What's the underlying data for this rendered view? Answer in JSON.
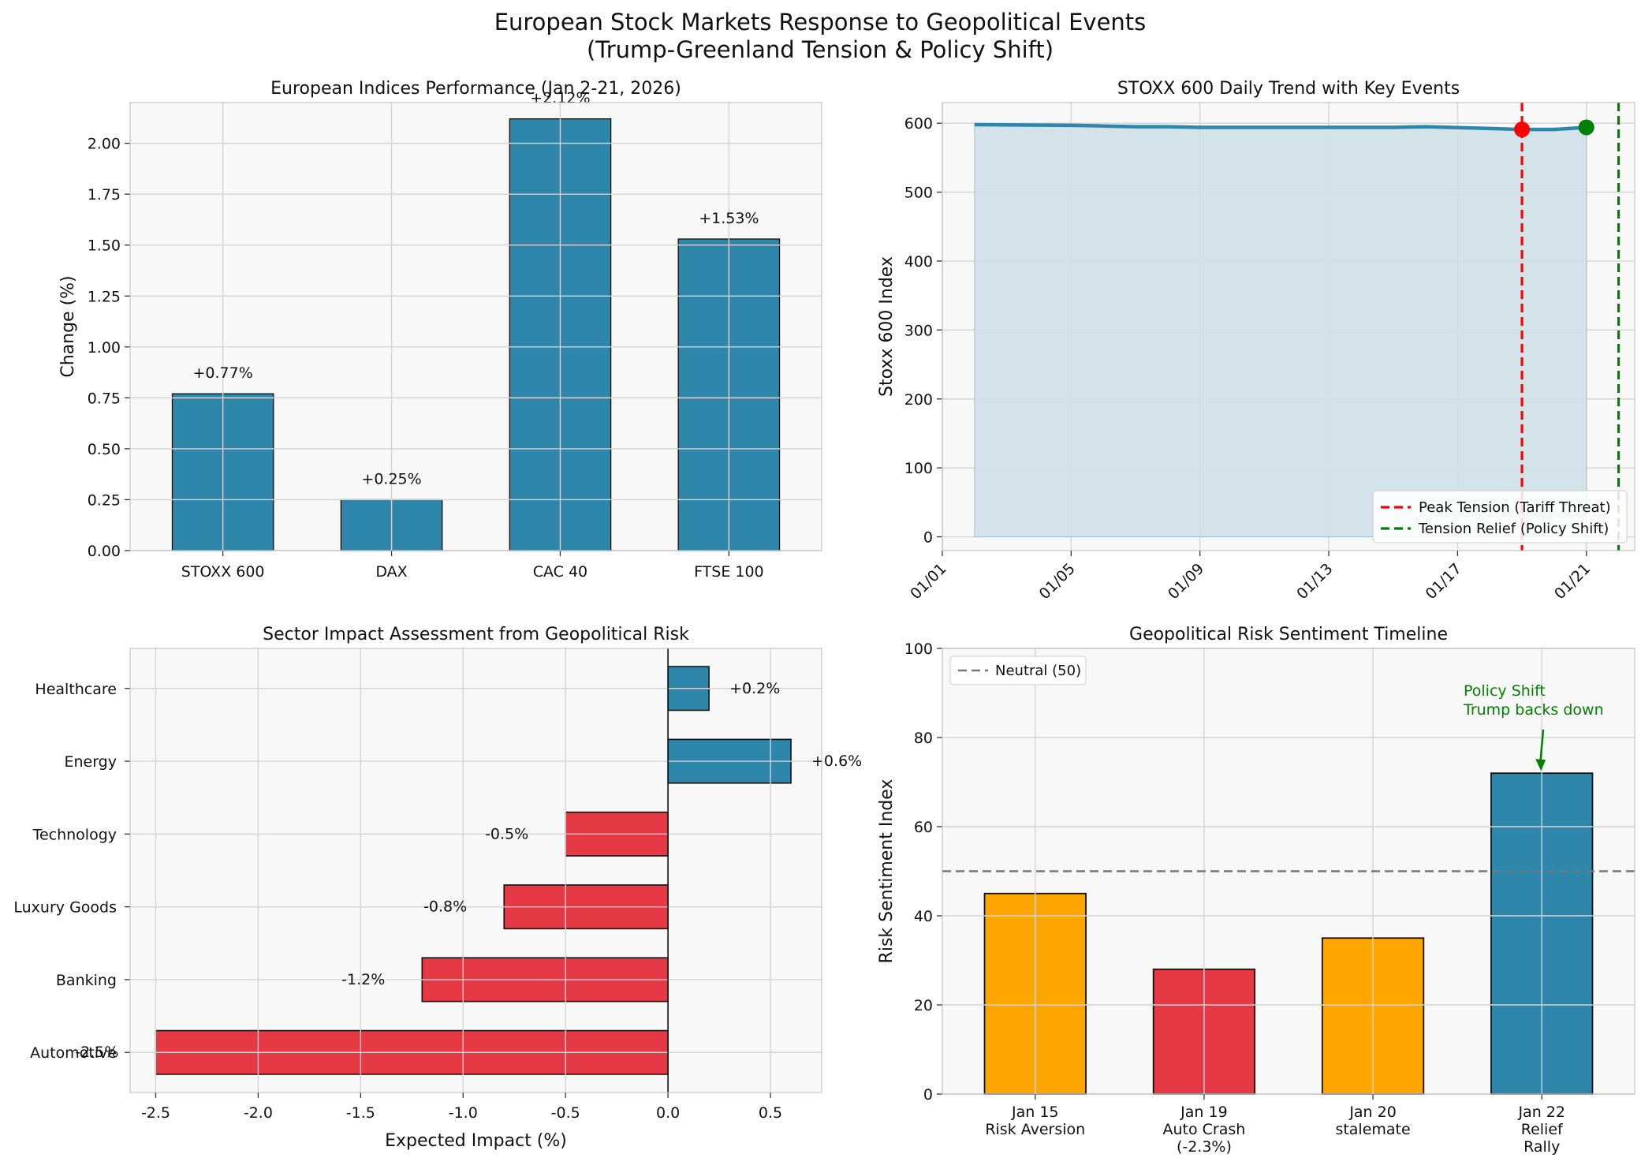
{
  "figure": {
    "title_line1": "European Stock Markets Response to Geopolitical Events",
    "title_line2": "(Trump-Greenland Tension & Policy Shift)"
  },
  "colors": {
    "blue": "#2e86ab",
    "red": "#e63946",
    "orange": "#ffa500",
    "green": "#008000",
    "fill": "#cfe0e8"
  },
  "chart_data": [
    {
      "id": "indices",
      "type": "bar",
      "title": "European Indices Performance (Jan 2-21, 2026)",
      "xlabel": "",
      "ylabel": "Change (%)",
      "categories": [
        "STOXX 600",
        "DAX",
        "CAC 40",
        "FTSE 100"
      ],
      "values": [
        0.77,
        0.25,
        2.12,
        1.53
      ],
      "value_labels": [
        "+0.77%",
        "+0.25%",
        "+2.12%",
        "+1.53%"
      ],
      "ylim": [
        0,
        2.2
      ],
      "yticks": [
        0.0,
        0.25,
        0.5,
        0.75,
        1.0,
        1.25,
        1.5,
        1.75,
        2.0
      ],
      "ytick_labels": [
        "0.00",
        "0.25",
        "0.50",
        "0.75",
        "1.00",
        "1.25",
        "1.50",
        "1.75",
        "2.00"
      ],
      "grid": true
    },
    {
      "id": "stoxx_trend",
      "type": "area",
      "title": "STOXX 600 Daily Trend with Key Events",
      "xlabel": "",
      "ylabel": "Stoxx 600 Index",
      "x_days": [
        2,
        5,
        6,
        7,
        8,
        9,
        12,
        13,
        14,
        15,
        16,
        19,
        20,
        21
      ],
      "values": [
        598,
        597,
        596,
        595,
        595,
        594,
        594,
        594,
        594,
        594,
        595,
        591,
        591,
        594
      ],
      "ylim": [
        -20,
        630
      ],
      "xlim_days": [
        1,
        22.5
      ],
      "yticks": [
        0,
        100,
        200,
        300,
        400,
        500,
        600
      ],
      "ytick_labels": [
        "0",
        "100",
        "200",
        "300",
        "400",
        "500",
        "600"
      ],
      "xtick_days": [
        1,
        5,
        9,
        13,
        17,
        21
      ],
      "xtick_labels": [
        "01/01",
        "01/05",
        "01/09",
        "01/13",
        "01/17",
        "01/21"
      ],
      "markers": [
        {
          "name": "peak-tension-marker",
          "day": 19,
          "value": 591,
          "color": "#ff0000"
        },
        {
          "name": "tension-relief-marker",
          "day": 21,
          "value": 594,
          "color": "#008000"
        }
      ],
      "event_lines": [
        {
          "day": 19,
          "color": "#ff0000",
          "label": "Peak Tension (Tariff Threat)"
        },
        {
          "day": 22,
          "color": "#008000",
          "label": "Tension Relief (Policy Shift)"
        }
      ],
      "legend_position": "lower-right",
      "grid": true
    },
    {
      "id": "sectors",
      "type": "barh",
      "title": "Sector Impact Assessment from Geopolitical Risk",
      "xlabel": "Expected Impact (%)",
      "ylabel": "",
      "categories": [
        "Healthcare",
        "Energy",
        "Technology",
        "Luxury Goods",
        "Banking",
        "Automotive"
      ],
      "values": [
        0.2,
        0.6,
        -0.5,
        -0.8,
        -1.2,
        -2.5
      ],
      "value_labels": [
        "+0.2%",
        "+0.6%",
        "-0.5%",
        "-0.8%",
        "-1.2%",
        "-2.5%"
      ],
      "xlim": [
        -2.625,
        0.75
      ],
      "xticks": [
        -2.5,
        -2.0,
        -1.5,
        -1.0,
        -0.5,
        0.0,
        0.5
      ],
      "xtick_labels": [
        "-2.5",
        "-2.0",
        "-1.5",
        "-1.0",
        "-0.5",
        "0.0",
        "0.5"
      ],
      "grid": true
    },
    {
      "id": "sentiment",
      "type": "bar",
      "title": "Geopolitical Risk Sentiment Timeline",
      "xlabel": "",
      "ylabel": "Risk Sentiment Index",
      "categories": [
        [
          "Jan 15",
          "Risk Aversion"
        ],
        [
          "Jan 19",
          "Auto Crash",
          "(-2.3%)"
        ],
        [
          "Jan 20",
          "stalemate"
        ],
        [
          "Jan 22",
          "Relief",
          "Rally"
        ]
      ],
      "values": [
        45,
        28,
        35,
        72
      ],
      "bar_colors": [
        "#ffa500",
        "#e63946",
        "#ffa500",
        "#2e86ab"
      ],
      "ylim": [
        0,
        100
      ],
      "yticks": [
        0,
        20,
        40,
        60,
        80,
        100
      ],
      "ytick_labels": [
        "0",
        "20",
        "40",
        "60",
        "80",
        "100"
      ],
      "reference_line": {
        "value": 50,
        "label": "Neutral (50)"
      },
      "annotation": {
        "lines": [
          "Policy Shift",
          "Trump backs down"
        ],
        "target_index": 3,
        "target_value": 72,
        "color": "#008000"
      },
      "legend_position": "upper-left",
      "grid": true
    }
  ]
}
